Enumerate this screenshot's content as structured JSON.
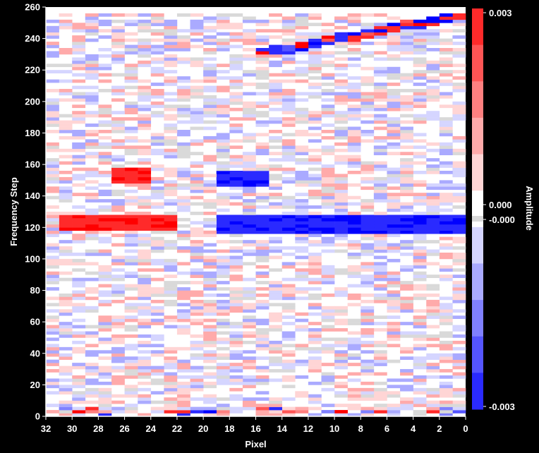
{
  "chart_data": {
    "type": "heatmap",
    "xlabel": "Pixel",
    "ylabel": "Frequency Step",
    "colorbar_label": "Amplitude",
    "xlim": [
      32,
      0
    ],
    "ylim": [
      0,
      260
    ],
    "x_ticks": [
      32,
      30,
      28,
      26,
      24,
      22,
      20,
      18,
      16,
      14,
      12,
      10,
      8,
      6,
      4,
      2,
      0
    ],
    "y_ticks": [
      0,
      20,
      40,
      60,
      80,
      100,
      120,
      140,
      160,
      180,
      200,
      220,
      240,
      260
    ],
    "colorscale": "blue-white-red (diverging)",
    "color_range": [
      -0.003,
      0.003
    ],
    "colorbar_ticks": [
      "0.003",
      "0.000",
      "-0.000",
      "-0.003"
    ],
    "grid": false,
    "n_pixels": 32,
    "n_frequency_steps": 256,
    "features": [
      {
        "description": "strong positive band",
        "pixels": [
          22,
          30
        ],
        "frequency_steps": [
          118,
          126
        ],
        "value": 0.003
      },
      {
        "description": "strong positive block",
        "pixels": [
          24,
          26
        ],
        "frequency_steps": [
          148,
          156
        ],
        "value": 0.003
      },
      {
        "description": "strong negative block",
        "pixels": [
          15,
          18
        ],
        "frequency_steps": [
          146,
          154
        ],
        "value": -0.003
      },
      {
        "description": "strong negative band",
        "pixels": [
          0,
          18
        ],
        "frequency_steps": [
          116,
          126
        ],
        "value": -0.003
      },
      {
        "description": "diagonal mixed streaks near top",
        "pixels": [
          0,
          16
        ],
        "frequency_steps": [
          230,
          256
        ]
      }
    ]
  },
  "colors": {
    "background": "#000000",
    "neg_max": "#0000ff",
    "zero": "#ffffff",
    "pos_max": "#ff0000",
    "near_zero_gray": "#d9d9d9"
  }
}
